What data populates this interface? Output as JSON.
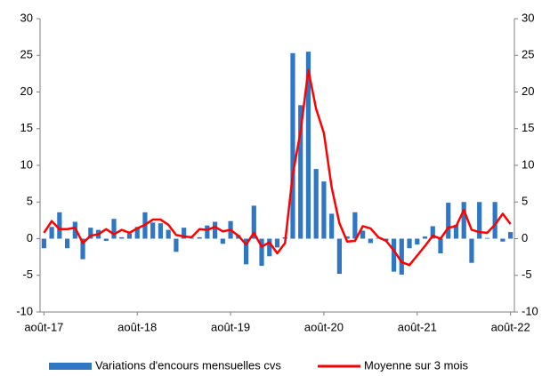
{
  "chart_data": {
    "type": "bar",
    "categories": [
      "août-17",
      null,
      null,
      null,
      null,
      null,
      null,
      null,
      null,
      null,
      null,
      null,
      "août-18",
      null,
      null,
      null,
      null,
      null,
      null,
      null,
      null,
      null,
      null,
      null,
      "août-19",
      null,
      null,
      null,
      null,
      null,
      null,
      null,
      null,
      null,
      null,
      null,
      "août-20",
      null,
      null,
      null,
      null,
      null,
      null,
      null,
      null,
      null,
      null,
      null,
      "août-21",
      null,
      null,
      null,
      null,
      null,
      null,
      null,
      null,
      null,
      null,
      null,
      "août-22"
    ],
    "series": [
      {
        "name": "Variations d'encours mensuelles cvs",
        "type": "bar",
        "color": "#2f77c4",
        "values": [
          -1.3,
          1.6,
          3.6,
          -1.3,
          2.3,
          -2.8,
          1.5,
          1.2,
          -0.3,
          2.7,
          0.2,
          0.7,
          1.6,
          3.6,
          2.2,
          2.1,
          1.2,
          -1.8,
          1.5,
          0.1,
          0.2,
          1.8,
          2.3,
          -0.7,
          2.4,
          0.5,
          -3.5,
          4.5,
          -3.7,
          -2.4,
          -1.2,
          0.2,
          25.3,
          18.2,
          25.5,
          9.5,
          7.8,
          3.4,
          -4.8,
          0.3,
          3.6,
          1.1,
          -0.6,
          0.1,
          -0.3,
          -4.5,
          -4.9,
          -1.3,
          -0.8,
          0.3,
          1.7,
          -2.0,
          4.9,
          1.9,
          5.0,
          -3.3,
          5.0,
          0.1,
          5.0,
          -0.4,
          0.9
        ]
      },
      {
        "name": "Moyenne sur 3 mois",
        "type": "line",
        "color": "#ff0000",
        "values": [
          0.8,
          2.4,
          1.3,
          1.3,
          1.5,
          -0.6,
          0.4,
          0.6,
          1.3,
          0.6,
          1.2,
          0.8,
          1.4,
          1.9,
          2.6,
          2.6,
          1.9,
          0.5,
          0.3,
          0.2,
          1.3,
          1.2,
          1.6,
          1.0,
          1.2,
          0.4,
          -0.8,
          0.8,
          -1.1,
          -0.5,
          -2.0,
          -0.6,
          8.8,
          14.6,
          23.0,
          17.7,
          14.4,
          7.0,
          2.1,
          -0.4,
          -0.3,
          1.7,
          1.4,
          0.2,
          -0.3,
          -1.6,
          -3.2,
          -3.6,
          -2.3,
          -1.0,
          0.4,
          0.0,
          1.5,
          1.7,
          3.9,
          1.2,
          0.9,
          0.8,
          1.9,
          3.4,
          2.0
        ]
      }
    ],
    "ylim": [
      -10,
      30
    ],
    "yticks": [
      -10,
      -5,
      0,
      5,
      10,
      15,
      20,
      25,
      30
    ],
    "y2lim": [
      -10,
      30
    ],
    "y2ticks": [
      -10,
      -5,
      0,
      5,
      10,
      15,
      20,
      25,
      30
    ],
    "grid": false,
    "legend": "bottom"
  }
}
